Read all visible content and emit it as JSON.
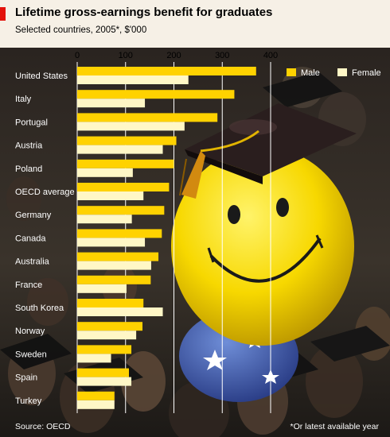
{
  "header": {
    "title": "Lifetime gross-earnings benefit for graduates",
    "subtitle": "Selected countries, 2005*, $'000"
  },
  "footer": {
    "source": "Source: OECD",
    "note": "*Or latest available year"
  },
  "colors": {
    "accent_red": "#e3120b",
    "male": "#ffd200",
    "female": "#fff7c6",
    "background": "#f6f0e6",
    "gridline": "#ffffff",
    "label_text": "#ffffff",
    "axis_text": "#000000"
  },
  "illustration": {
    "description_icon": "smiley-balloon-with-graduation-cap-icon"
  },
  "chart_data": {
    "type": "bar",
    "orientation": "horizontal",
    "title": "Lifetime gross-earnings benefit for graduates",
    "subtitle": "Selected countries, 2005*, $'000",
    "categories": [
      "United States",
      "Italy",
      "Portugal",
      "Austria",
      "Poland",
      "OECD average",
      "Germany",
      "Canada",
      "Australia",
      "France",
      "South Korea",
      "Norway",
      "Sweden",
      "Spain",
      "Turkey"
    ],
    "series": [
      {
        "name": "Male",
        "values": [
          370,
          325,
          290,
          205,
          200,
          190,
          180,
          175,
          168,
          152,
          137,
          135,
          112,
          107,
          77
        ]
      },
      {
        "name": "Female",
        "values": [
          230,
          140,
          222,
          177,
          115,
          137,
          113,
          140,
          153,
          102,
          177,
          122,
          70,
          112,
          77
        ]
      }
    ],
    "xlim": [
      0,
      400
    ],
    "xticks": [
      0,
      100,
      200,
      300,
      400
    ],
    "grid": true,
    "legend": "top-right"
  }
}
